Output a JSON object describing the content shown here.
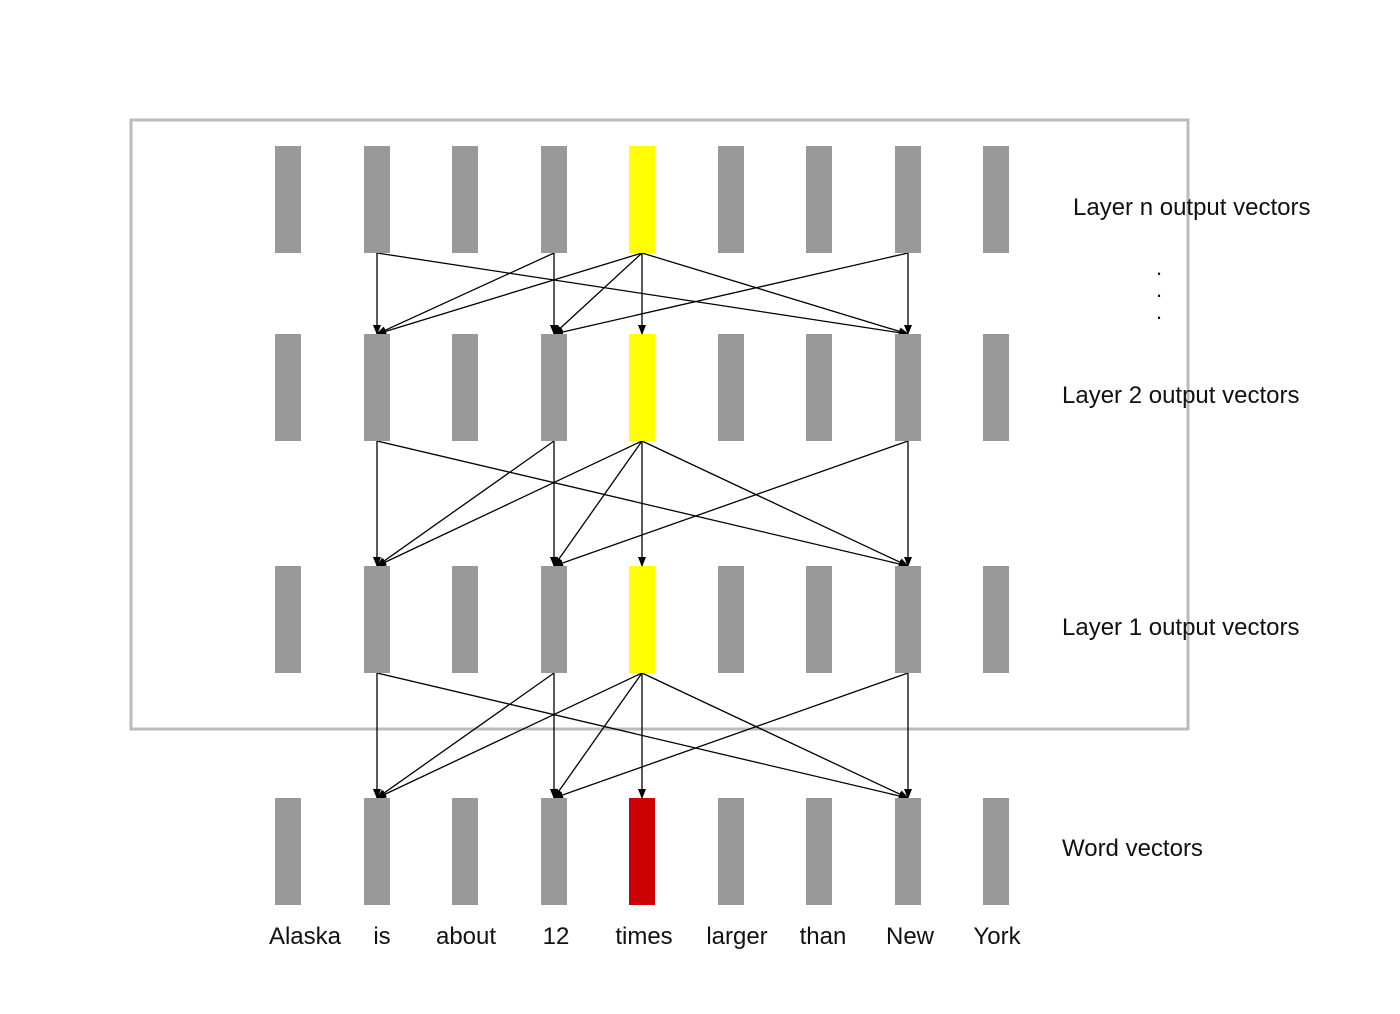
{
  "words": [
    "Alaska",
    "is",
    "about",
    "12",
    "times",
    "larger",
    "than",
    "New",
    "York"
  ],
  "layers": [
    {
      "label": "Layer n output vectors",
      "highlight_index": 4,
      "highlight_color": "#ffff00"
    },
    {
      "label": "Layer 2 output vectors",
      "highlight_index": 4,
      "highlight_color": "#ffff00"
    },
    {
      "label": "Layer 1 output vectors",
      "highlight_index": 4,
      "highlight_color": "#ffff00"
    },
    {
      "label": "Word vectors",
      "highlight_index": 4,
      "highlight_color": "#cc0000"
    }
  ],
  "ellipsis": [
    "·",
    "·",
    "·"
  ],
  "connections": [
    [
      1,
      1
    ],
    [
      1,
      7
    ],
    [
      3,
      1
    ],
    [
      3,
      3
    ],
    [
      4,
      1
    ],
    [
      4,
      3
    ],
    [
      4,
      4
    ],
    [
      4,
      7
    ],
    [
      7,
      3
    ],
    [
      7,
      7
    ]
  ],
  "colors": {
    "vector": "#999999",
    "frame": "#bbbbbb",
    "arrow": "#000000"
  }
}
